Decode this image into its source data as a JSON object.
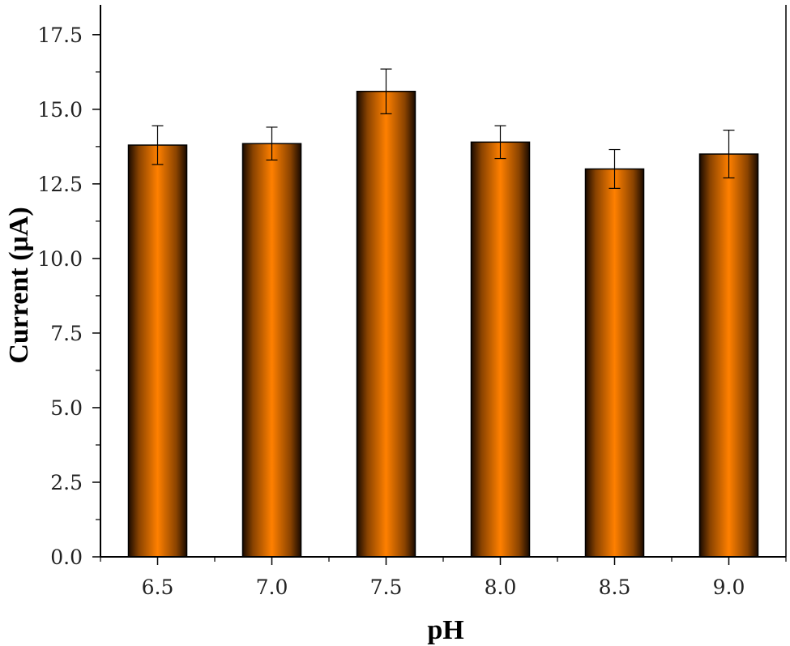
{
  "chart_data": {
    "type": "bar",
    "title": "",
    "xlabel": "pH",
    "ylabel": "Current (μA)",
    "categories": [
      "6.5",
      "7.0",
      "7.5",
      "8.0",
      "8.5",
      "9.0"
    ],
    "values": [
      13.8,
      13.85,
      15.6,
      13.9,
      13.0,
      13.5
    ],
    "errors": [
      0.65,
      0.55,
      0.75,
      0.55,
      0.65,
      0.8
    ],
    "ylim": [
      0,
      18.5
    ],
    "yticks": [
      0,
      2.5,
      5,
      7.5,
      10,
      12.5,
      15,
      17.5
    ],
    "ytick_labels": [
      "0.0",
      "2.5",
      "5.0",
      "7.5",
      "10.0",
      "12.5",
      "15.0",
      "17.5"
    ],
    "grid": false,
    "bar_color": "#ff7f00",
    "bar_edge_color": "#000000"
  }
}
